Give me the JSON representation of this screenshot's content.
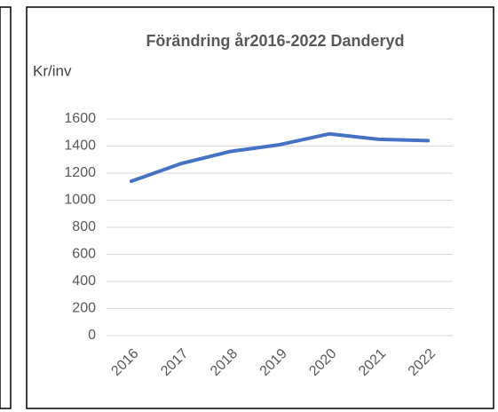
{
  "chart_data": {
    "type": "line",
    "title": "Förändring år2016-2022 Danderyd",
    "y_label": "Kr/inv",
    "categories": [
      "2016",
      "2017",
      "2018",
      "2019",
      "2020",
      "2021",
      "2022"
    ],
    "series": [
      {
        "name": "Danderyd",
        "color": "#4472c4",
        "values": [
          1140,
          1270,
          1360,
          1410,
          1490,
          1450,
          1440
        ]
      }
    ],
    "ylim": [
      0,
      1600
    ],
    "yticks": [
      0,
      200,
      400,
      600,
      800,
      1000,
      1200,
      1400,
      1600
    ],
    "grid": true
  }
}
